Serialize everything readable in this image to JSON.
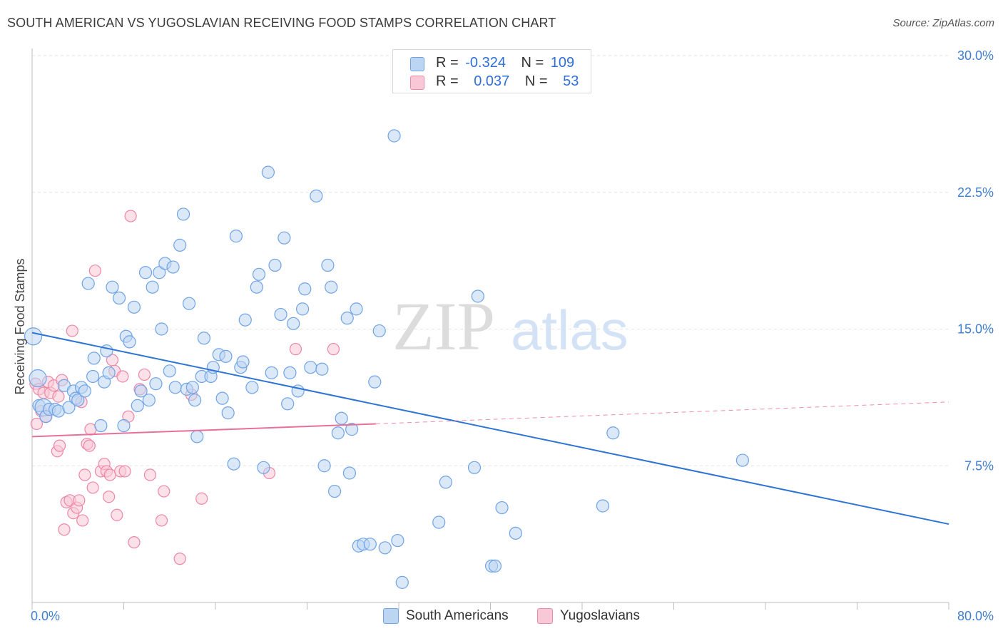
{
  "title": "SOUTH AMERICAN VS YUGOSLAVIAN RECEIVING FOOD STAMPS CORRELATION CHART",
  "source": "Source: ZipAtlas.com",
  "watermark": {
    "zip": "ZIP",
    "atlas": "atlas"
  },
  "legend": {
    "rows": [
      {
        "r_label": "R =",
        "r_value": "-0.324",
        "n_label": "N =",
        "n_value": "109",
        "color": "#a9c8f0"
      },
      {
        "r_label": "R =",
        "r_value": "0.037",
        "n_label": "N =",
        "n_value": "53",
        "color": "#f7b6c9"
      }
    ]
  },
  "bottom_legend": [
    {
      "label": "South Americans",
      "color": "#a9c8f0"
    },
    {
      "label": "Yugoslavians",
      "color": "#f7b6c9"
    }
  ],
  "chart_data": {
    "type": "scatter",
    "title": "SOUTH AMERICAN VS YUGOSLAVIAN RECEIVING FOOD STAMPS CORRELATION CHART",
    "xlabel": "",
    "ylabel": "Receiving Food Stamps",
    "xlim": [
      0,
      80
    ],
    "ylim": [
      0,
      30
    ],
    "x_tick_labels": [
      "0.0%",
      "80.0%"
    ],
    "y_ticks": [
      7.5,
      15.0,
      22.5,
      30.0
    ],
    "y_tick_labels": [
      "7.5%",
      "15.0%",
      "22.5%",
      "30.0%"
    ],
    "grid": true,
    "legend_position": "top-center",
    "colors": {
      "south_american": "#6fa3e6",
      "south_american_fill": "#bcd5f3",
      "yugoslavian": "#ec87a8",
      "yugoslavian_fill": "#f9c8d7",
      "trend_blue": "#2e74d4",
      "trend_pink": "#e8709a"
    },
    "series": [
      {
        "name": "South Americans",
        "points": [
          [
            0.1,
            14.6
          ],
          [
            0.5,
            12.3
          ],
          [
            0.6,
            10.8
          ],
          [
            1.0,
            10.7
          ],
          [
            1.2,
            10.2
          ],
          [
            1.5,
            10.6
          ],
          [
            2.0,
            10.6
          ],
          [
            2.3,
            10.5
          ],
          [
            2.8,
            11.9
          ],
          [
            3.2,
            10.7
          ],
          [
            3.6,
            11.6
          ],
          [
            3.8,
            11.2
          ],
          [
            4.0,
            11.1
          ],
          [
            4.3,
            11.8
          ],
          [
            4.6,
            11.6
          ],
          [
            4.9,
            17.5
          ],
          [
            5.4,
            13.4
          ],
          [
            5.3,
            12.4
          ],
          [
            6.0,
            9.7
          ],
          [
            6.3,
            12.1
          ],
          [
            6.5,
            13.8
          ],
          [
            6.7,
            12.6
          ],
          [
            7.0,
            17.3
          ],
          [
            7.6,
            16.7
          ],
          [
            8.0,
            9.7
          ],
          [
            8.2,
            14.6
          ],
          [
            8.5,
            14.3
          ],
          [
            8.9,
            16.2
          ],
          [
            9.2,
            10.8
          ],
          [
            9.5,
            11.6
          ],
          [
            9.9,
            18.1
          ],
          [
            10.2,
            11.1
          ],
          [
            10.5,
            17.3
          ],
          [
            10.8,
            12.0
          ],
          [
            11.1,
            18.1
          ],
          [
            11.3,
            15.0
          ],
          [
            11.6,
            18.6
          ],
          [
            12.0,
            12.7
          ],
          [
            12.3,
            18.4
          ],
          [
            12.5,
            11.8
          ],
          [
            12.9,
            19.6
          ],
          [
            13.2,
            21.3
          ],
          [
            13.5,
            11.7
          ],
          [
            13.7,
            16.4
          ],
          [
            14.0,
            11.8
          ],
          [
            14.2,
            11.1
          ],
          [
            14.4,
            9.1
          ],
          [
            14.8,
            12.4
          ],
          [
            15.0,
            14.5
          ],
          [
            15.6,
            12.4
          ],
          [
            15.8,
            12.9
          ],
          [
            16.3,
            13.6
          ],
          [
            16.6,
            11.2
          ],
          [
            16.9,
            13.5
          ],
          [
            17.1,
            10.4
          ],
          [
            17.6,
            7.6
          ],
          [
            17.8,
            20.1
          ],
          [
            18.2,
            12.9
          ],
          [
            18.4,
            13.2
          ],
          [
            18.6,
            15.5
          ],
          [
            19.2,
            11.8
          ],
          [
            19.6,
            17.3
          ],
          [
            19.8,
            18.0
          ],
          [
            20.2,
            7.4
          ],
          [
            20.6,
            23.6
          ],
          [
            20.9,
            12.6
          ],
          [
            21.2,
            18.5
          ],
          [
            21.7,
            15.8
          ],
          [
            22.0,
            20.0
          ],
          [
            22.3,
            10.9
          ],
          [
            22.5,
            12.6
          ],
          [
            22.8,
            15.3
          ],
          [
            23.2,
            11.6
          ],
          [
            23.6,
            16.1
          ],
          [
            23.8,
            17.2
          ],
          [
            24.3,
            12.9
          ],
          [
            24.8,
            22.3
          ],
          [
            25.3,
            12.8
          ],
          [
            25.5,
            7.5
          ],
          [
            25.8,
            18.5
          ],
          [
            26.1,
            17.3
          ],
          [
            26.4,
            6.1
          ],
          [
            26.7,
            9.3
          ],
          [
            27.0,
            10.1
          ],
          [
            27.5,
            15.6
          ],
          [
            27.7,
            7.1
          ],
          [
            27.9,
            9.5
          ],
          [
            28.3,
            16.1
          ],
          [
            28.5,
            3.1
          ],
          [
            28.9,
            3.2
          ],
          [
            29.5,
            3.2
          ],
          [
            29.9,
            12.1
          ],
          [
            30.3,
            14.9
          ],
          [
            30.8,
            3.0
          ],
          [
            31.6,
            25.6
          ],
          [
            31.9,
            3.4
          ],
          [
            32.3,
            1.1
          ],
          [
            35.5,
            4.4
          ],
          [
            36.1,
            6.6
          ],
          [
            38.6,
            7.4
          ],
          [
            38.9,
            16.8
          ],
          [
            40.1,
            2.0
          ],
          [
            40.4,
            2.0
          ],
          [
            41.0,
            5.2
          ],
          [
            42.2,
            3.8
          ],
          [
            49.8,
            5.3
          ],
          [
            50.7,
            9.3
          ],
          [
            62.0,
            7.8
          ]
        ],
        "trend": {
          "x": [
            0,
            80
          ],
          "y": [
            14.8,
            4.3
          ]
        },
        "r": -0.324,
        "n": 109
      },
      {
        "name": "Yugoslavians",
        "points": [
          [
            0.3,
            12.0
          ],
          [
            0.4,
            9.8
          ],
          [
            0.6,
            11.7
          ],
          [
            0.8,
            10.5
          ],
          [
            1.0,
            11.5
          ],
          [
            1.2,
            10.2
          ],
          [
            1.4,
            12.1
          ],
          [
            1.6,
            11.5
          ],
          [
            1.9,
            11.9
          ],
          [
            2.3,
            11.3
          ],
          [
            2.2,
            8.3
          ],
          [
            2.4,
            8.6
          ],
          [
            2.6,
            12.2
          ],
          [
            2.8,
            4.0
          ],
          [
            3.0,
            5.5
          ],
          [
            3.3,
            5.6
          ],
          [
            3.5,
            14.9
          ],
          [
            3.6,
            4.9
          ],
          [
            3.9,
            5.2
          ],
          [
            4.1,
            5.6
          ],
          [
            4.3,
            11.0
          ],
          [
            4.4,
            4.5
          ],
          [
            4.6,
            7.0
          ],
          [
            4.8,
            8.7
          ],
          [
            5.0,
            8.6
          ],
          [
            5.1,
            9.5
          ],
          [
            5.3,
            6.3
          ],
          [
            5.5,
            18.2
          ],
          [
            6.0,
            7.2
          ],
          [
            6.3,
            7.6
          ],
          [
            6.5,
            7.2
          ],
          [
            6.7,
            5.8
          ],
          [
            6.8,
            7.0
          ],
          [
            7.0,
            13.3
          ],
          [
            7.2,
            12.7
          ],
          [
            7.4,
            4.8
          ],
          [
            7.7,
            7.2
          ],
          [
            7.9,
            12.4
          ],
          [
            8.1,
            7.2
          ],
          [
            8.6,
            21.2
          ],
          [
            8.4,
            10.2
          ],
          [
            8.9,
            3.3
          ],
          [
            9.4,
            11.7
          ],
          [
            9.8,
            12.5
          ],
          [
            10.3,
            7.0
          ],
          [
            11.3,
            4.5
          ],
          [
            11.5,
            6.1
          ],
          [
            12.9,
            2.4
          ],
          [
            13.9,
            11.4
          ],
          [
            14.8,
            5.7
          ],
          [
            20.7,
            7.1
          ],
          [
            23.0,
            13.9
          ],
          [
            26.3,
            13.9
          ]
        ],
        "trend": {
          "x": [
            0,
            30
          ],
          "y": [
            9.1,
            9.8
          ]
        },
        "trend_dashed": {
          "x": [
            30,
            80
          ],
          "y": [
            9.8,
            11.0
          ]
        },
        "r": 0.037,
        "n": 53
      }
    ]
  }
}
